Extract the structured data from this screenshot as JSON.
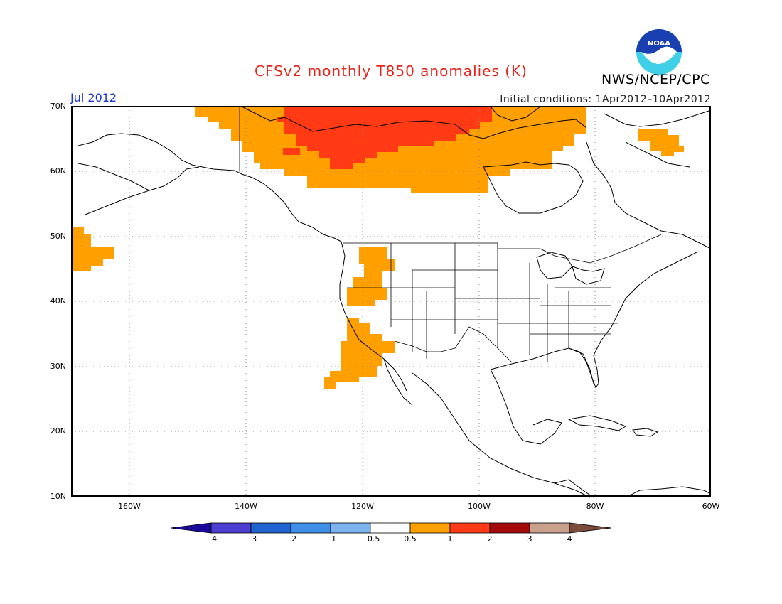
{
  "title": "CFSv2 monthly T850 anomalies (K)",
  "agency": "NWS/NCEP/CPC",
  "logo_text": "NOAA",
  "period": "Jul 2012",
  "initial_conditions": "Initial conditions: 1Apr2012–10Apr2012",
  "lat_labels": [
    "70N",
    "60N",
    "50N",
    "40N",
    "30N",
    "20N",
    "10N"
  ],
  "lon_labels": [
    "160W",
    "140W",
    "120W",
    "100W",
    "80W",
    "60W"
  ],
  "colorbar": {
    "labels": [
      "−4",
      "−3",
      "−2",
      "−1",
      "−0.5",
      "0.5",
      "1",
      "2",
      "3",
      "4"
    ],
    "colors": [
      "#1a0a9c",
      "#4b3ed0",
      "#1f64d0",
      "#3f8ee8",
      "#7cb4f0",
      "#ffffff",
      "#ff9f00",
      "#ff3a14",
      "#a50a0a",
      "#c9a08e",
      "#7a4a3a"
    ]
  },
  "map": {
    "region": "North America",
    "lat_range": [
      10,
      70
    ],
    "lon_range": [
      -170,
      -60
    ],
    "anomaly_regions": [
      {
        "name": "northern-canada-alaska",
        "category": "0.5-1",
        "color": "#ff9f00"
      },
      {
        "name": "northwest-territories-core",
        "category": "1-2",
        "color": "#ff3a14"
      },
      {
        "name": "baffin-greenland",
        "category": "0.5-1",
        "color": "#ff9f00"
      },
      {
        "name": "north-pacific",
        "category": "0.5-1",
        "color": "#ff9f00"
      },
      {
        "name": "idaho-montana",
        "category": "0.5-1",
        "color": "#ff9f00"
      },
      {
        "name": "california-baja",
        "category": "0.5-1",
        "color": "#ff9f00"
      }
    ]
  }
}
